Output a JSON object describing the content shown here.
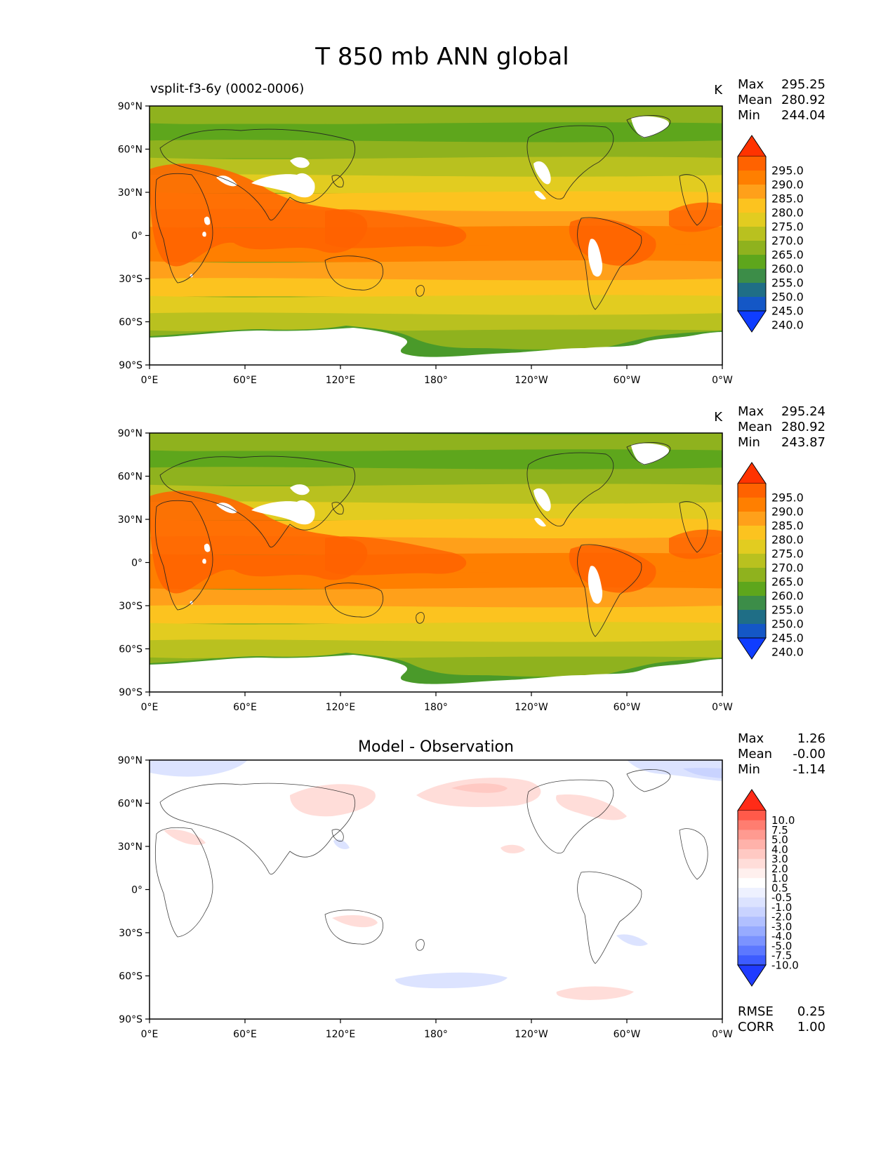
{
  "title": "T 850 mb ANN global",
  "x_ticks": [
    "0°E",
    "60°E",
    "120°E",
    "180°",
    "120°W",
    "60°W",
    "0°W"
  ],
  "y_ticks": [
    "90°N",
    "60°N",
    "30°N",
    "0°",
    "30°S",
    "60°S",
    "90°S"
  ],
  "panels": [
    {
      "left_title": "vsplit-f3-6y (0002-0006)",
      "center_title": "",
      "units": "K",
      "stats": [
        {
          "label": "Max",
          "value": "295.25"
        },
        {
          "label": "Mean",
          "value": "280.92"
        },
        {
          "label": "Min",
          "value": "244.04"
        }
      ],
      "colorbar_labels": [
        "295.0",
        "290.0",
        "285.0",
        "280.0",
        "275.0",
        "270.0",
        "265.0",
        "260.0",
        "255.0",
        "250.0",
        "245.0",
        "240.0"
      ]
    },
    {
      "left_title": "",
      "center_title": "",
      "units": "K",
      "stats": [
        {
          "label": "Max",
          "value": "295.24"
        },
        {
          "label": "Mean",
          "value": "280.92"
        },
        {
          "label": "Min",
          "value": "243.87"
        }
      ],
      "colorbar_labels": [
        "295.0",
        "290.0",
        "285.0",
        "280.0",
        "275.0",
        "270.0",
        "265.0",
        "260.0",
        "255.0",
        "250.0",
        "245.0",
        "240.0"
      ]
    },
    {
      "left_title": "",
      "center_title": "Model - Observation",
      "units": "",
      "stats": [
        {
          "label": "Max",
          "value": "1.26"
        },
        {
          "label": "Mean",
          "value": "-0.00"
        },
        {
          "label": "Min",
          "value": "-1.14"
        }
      ],
      "colorbar_labels": [
        "10.0",
        "7.5",
        "5.0",
        "4.0",
        "3.0",
        "2.0",
        "1.0",
        "0.5",
        "-0.5",
        "-1.0",
        "-2.0",
        "-3.0",
        "-4.0",
        "-5.0",
        "-7.5",
        "-10.0"
      ],
      "metrics": [
        {
          "label": "RMSE",
          "value": "0.25"
        },
        {
          "label": "CORR",
          "value": "1.00"
        }
      ]
    }
  ],
  "colors": {
    "temperature_scale": [
      "#ff3300",
      "#ff6200",
      "#ff7f00",
      "#ffa01a",
      "#fcc31f",
      "#e2cc20",
      "#b9c11f",
      "#8fb21e",
      "#5ea61c",
      "#3c8d48",
      "#1f6e86",
      "#1457c6",
      "#0f3dff"
    ],
    "difference_scale": [
      "#ff2b17",
      "#ff5a4a",
      "#ff7d70",
      "#ff9a90",
      "#ffb2aa",
      "#ffc9c3",
      "#ffddd9",
      "#fff0ee",
      "#ffffff",
      "#eef1ff",
      "#dce3ff",
      "#c9d3ff",
      "#b1c0ff",
      "#97abff",
      "#7b93ff",
      "#5c78ff",
      "#3d5cff",
      "#1f3bff"
    ]
  }
}
